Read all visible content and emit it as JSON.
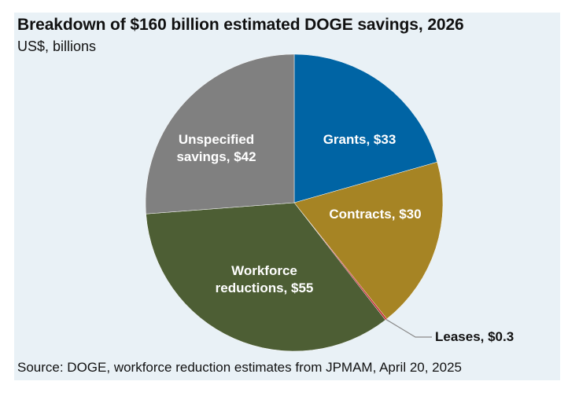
{
  "title": "Breakdown of $160 billion estimated DOGE savings, 2026",
  "subtitle": "US$, billions",
  "source": "Source: DOGE, workforce reduction estimates from JPMAM, April 20, 2025",
  "chart_data": {
    "type": "pie",
    "title": "Breakdown of $160 billion estimated DOGE savings, 2026",
    "unit": "US$, billions",
    "slices": [
      {
        "name": "Grants",
        "label_lines": [
          "Grants, $33"
        ],
        "value": 33,
        "color": "#0064a4"
      },
      {
        "name": "Contracts",
        "label_lines": [
          "Contracts, $30"
        ],
        "value": 30,
        "color": "#a68424"
      },
      {
        "name": "Leases",
        "label_lines": [
          "Leases, $0.3"
        ],
        "value": 0.3,
        "color": "#c0262d"
      },
      {
        "name": "Workforce reductions",
        "label_lines": [
          "Workforce",
          "reductions, $55"
        ],
        "value": 55,
        "color": "#4d5e34"
      },
      {
        "name": "Unspecified savings",
        "label_lines": [
          "Unspecified",
          "savings, $42"
        ],
        "value": 42,
        "color": "#808080"
      }
    ]
  }
}
